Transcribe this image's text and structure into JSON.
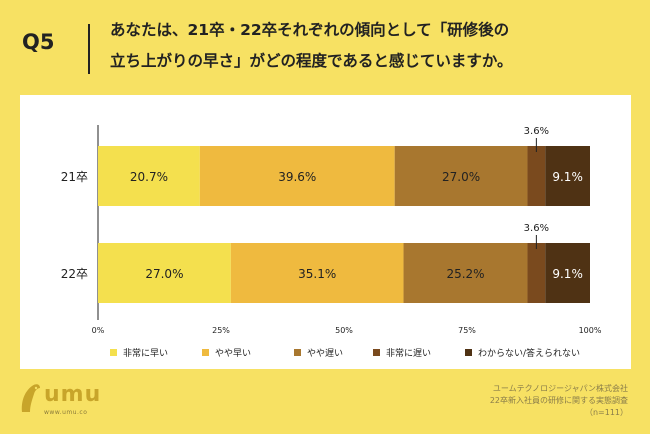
{
  "header": {
    "q_label": "Q5",
    "question_line1": "あなたは、21卒・22卒それぞれの傾向として「研修後の",
    "question_line2": "立ち上がりの早さ」がどの程度であると感じていますか。"
  },
  "brand": {
    "logo_text": "umu",
    "url": "www.umu.co"
  },
  "footer": {
    "line1": "ユームテクノロジージャパン株式会社",
    "line2": "22卒新入社員の研修に関する実態調査",
    "line3": "（n=111）"
  },
  "colors": {
    "background": "#f7e163",
    "series": [
      "#f4e04e",
      "#efba3f",
      "#a8772f",
      "#7a4a1e",
      "#4f3214"
    ]
  },
  "chart_data": {
    "type": "bar",
    "orientation": "horizontal",
    "stacked": true,
    "categories": [
      "21卒",
      "22卒"
    ],
    "series": [
      {
        "name": "非常に早い",
        "values": [
          20.7,
          27.0
        ]
      },
      {
        "name": "やや早い",
        "values": [
          39.6,
          35.1
        ]
      },
      {
        "name": "やや遅い",
        "values": [
          27.0,
          25.2
        ]
      },
      {
        "name": "非常に遅い",
        "values": [
          3.6,
          3.6
        ]
      },
      {
        "name": "わからない/答えられない",
        "values": [
          9.1,
          9.1
        ]
      }
    ],
    "value_labels": [
      [
        "20.7%",
        "39.6%",
        "27.0%",
        "3.6%",
        "9.1%"
      ],
      [
        "27.0%",
        "35.1%",
        "25.2%",
        "3.6%",
        "9.1%"
      ]
    ],
    "xlim": [
      0,
      100
    ],
    "x_ticks": [
      0,
      25,
      50,
      75,
      100
    ],
    "x_tick_labels": [
      "0%",
      "25%",
      "50%",
      "75%",
      "100%"
    ],
    "title": "",
    "xlabel": "",
    "ylabel": "",
    "legend_position": "bottom",
    "grid": false
  }
}
